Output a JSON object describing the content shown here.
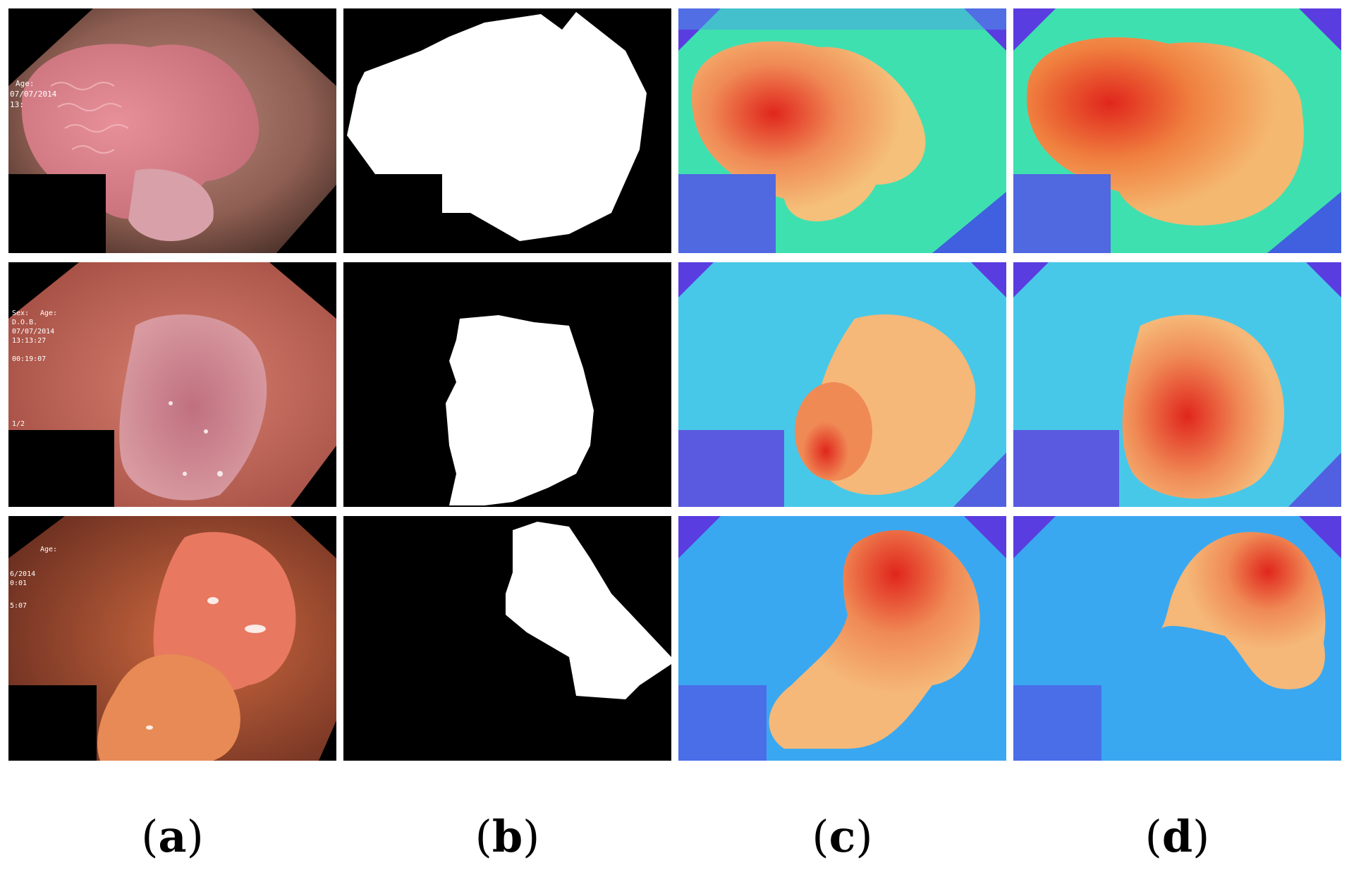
{
  "captions": [
    "a",
    "b",
    "c",
    "d"
  ],
  "overlay_text": {
    "row0": [
      "Age:",
      "07/07/2014",
      "13:"
    ],
    "row1": [
      "Sex:",
      "Age:",
      "D.O.B.",
      "07/07/2014",
      "13:13:27",
      "00:19:07",
      "1/2"
    ],
    "row2": [
      "Age:",
      "6/2014",
      "0:01",
      "5:07"
    ]
  },
  "colors": {
    "background": "#ffffff",
    "mask_foreground": "#ffffff",
    "mask_background": "#000000",
    "heat_low": "#5a3de0",
    "heat_mid": "#3fe0b0",
    "heat_high": "#e0261c"
  }
}
